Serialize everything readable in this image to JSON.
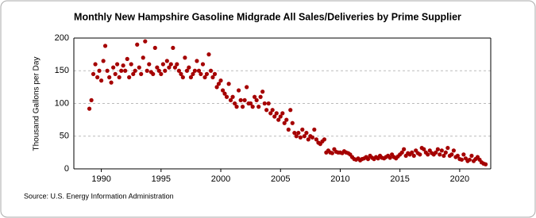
{
  "chart_data": {
    "type": "scatter",
    "title": "Monthly New Hampshire Gasoline Midgrade All Sales/Deliveries by Prime Supplier",
    "y_label": "Thousand Gallons per Day",
    "source": "Source: U.S. Energy Information Administration",
    "color": "#a50000",
    "grid": true,
    "xlim": [
      1987.7,
      2022.6
    ],
    "ylim": [
      0,
      200
    ],
    "xticks": [
      1990,
      1995,
      2000,
      2005,
      2010,
      2015,
      2020
    ],
    "yticks": [
      0,
      50,
      100,
      150,
      200
    ],
    "x": [
      1989.0,
      1989.17,
      1989.33,
      1989.5,
      1989.67,
      1989.83,
      1990.0,
      1990.17,
      1990.33,
      1990.5,
      1990.67,
      1990.83,
      1991.0,
      1991.17,
      1991.33,
      1991.5,
      1991.67,
      1991.83,
      1992.0,
      1992.17,
      1992.33,
      1992.5,
      1992.67,
      1992.83,
      1993.0,
      1993.17,
      1993.33,
      1993.5,
      1993.67,
      1993.83,
      1994.0,
      1994.17,
      1994.33,
      1994.5,
      1994.67,
      1994.83,
      1995.0,
      1995.17,
      1995.33,
      1995.5,
      1995.67,
      1995.83,
      1996.0,
      1996.17,
      1996.33,
      1996.5,
      1996.67,
      1996.83,
      1997.0,
      1997.17,
      1997.33,
      1997.5,
      1997.67,
      1997.83,
      1998.0,
      1998.17,
      1998.33,
      1998.5,
      1998.67,
      1998.83,
      1999.0,
      1999.17,
      1999.33,
      1999.5,
      1999.67,
      1999.83,
      2000.0,
      2000.17,
      2000.33,
      2000.5,
      2000.67,
      2000.83,
      2001.0,
      2001.17,
      2001.33,
      2001.5,
      2001.67,
      2001.83,
      2002.0,
      2002.17,
      2002.33,
      2002.5,
      2002.67,
      2002.83,
      2003.0,
      2003.17,
      2003.33,
      2003.5,
      2003.67,
      2003.83,
      2004.0,
      2004.17,
      2004.33,
      2004.5,
      2004.67,
      2004.83,
      2005.0,
      2005.17,
      2005.33,
      2005.5,
      2005.67,
      2005.83,
      2006.0,
      2006.17,
      2006.33,
      2006.5,
      2006.67,
      2006.83,
      2007.0,
      2007.17,
      2007.33,
      2007.5,
      2007.67,
      2007.83,
      2008.0,
      2008.17,
      2008.33,
      2008.5,
      2008.67,
      2008.83,
      2009.0,
      2009.17,
      2009.33,
      2009.5,
      2009.67,
      2009.83,
      2010.0,
      2010.17,
      2010.33,
      2010.5,
      2010.67,
      2010.83,
      2011.0,
      2011.17,
      2011.33,
      2011.5,
      2011.67,
      2011.83,
      2012.0,
      2012.17,
      2012.33,
      2012.5,
      2012.67,
      2012.83,
      2013.0,
      2013.17,
      2013.33,
      2013.5,
      2013.67,
      2013.83,
      2014.0,
      2014.17,
      2014.33,
      2014.5,
      2014.67,
      2014.83,
      2015.0,
      2015.17,
      2015.33,
      2015.5,
      2015.67,
      2015.83,
      2016.0,
      2016.17,
      2016.33,
      2016.5,
      2016.67,
      2016.83,
      2017.0,
      2017.17,
      2017.33,
      2017.5,
      2017.67,
      2017.83,
      2018.0,
      2018.17,
      2018.33,
      2018.5,
      2018.67,
      2018.83,
      2019.0,
      2019.17,
      2019.33,
      2019.5,
      2019.67,
      2019.83,
      2020.0,
      2020.17,
      2020.33,
      2020.5,
      2020.67,
      2020.83,
      2021.0,
      2021.17,
      2021.33,
      2021.5,
      2021.67,
      2021.83,
      2022.0,
      2022.17
    ],
    "values": [
      92,
      105,
      145,
      160,
      140,
      150,
      135,
      165,
      188,
      150,
      140,
      132,
      155,
      145,
      160,
      140,
      150,
      158,
      150,
      168,
      140,
      160,
      145,
      150,
      190,
      155,
      145,
      170,
      195,
      150,
      160,
      148,
      145,
      185,
      155,
      150,
      145,
      160,
      150,
      165,
      155,
      160,
      185,
      155,
      160,
      150,
      145,
      140,
      170,
      150,
      155,
      140,
      145,
      150,
      165,
      150,
      145,
      160,
      140,
      145,
      175,
      150,
      140,
      145,
      125,
      130,
      135,
      120,
      115,
      110,
      130,
      105,
      110,
      100,
      95,
      120,
      105,
      95,
      105,
      125,
      100,
      100,
      95,
      110,
      105,
      95,
      110,
      118,
      100,
      90,
      100,
      85,
      90,
      80,
      85,
      75,
      80,
      85,
      70,
      75,
      60,
      90,
      70,
      55,
      50,
      55,
      48,
      60,
      50,
      55,
      45,
      50,
      48,
      60,
      45,
      40,
      38,
      42,
      45,
      25,
      28,
      25,
      24,
      30,
      26,
      25,
      25,
      24,
      27,
      25,
      24,
      22,
      18,
      15,
      14,
      16,
      13,
      15,
      16,
      18,
      15,
      20,
      17,
      15,
      18,
      16,
      20,
      17,
      16,
      18,
      20,
      17,
      22,
      18,
      16,
      19,
      22,
      25,
      30,
      20,
      24,
      22,
      25,
      20,
      28,
      24,
      22,
      32,
      30,
      25,
      22,
      28,
      24,
      22,
      25,
      30,
      22,
      28,
      20,
      25,
      32,
      20,
      22,
      28,
      18,
      20,
      15,
      14,
      22,
      16,
      12,
      14,
      20,
      12,
      15,
      18,
      14,
      10,
      8,
      7
    ]
  }
}
